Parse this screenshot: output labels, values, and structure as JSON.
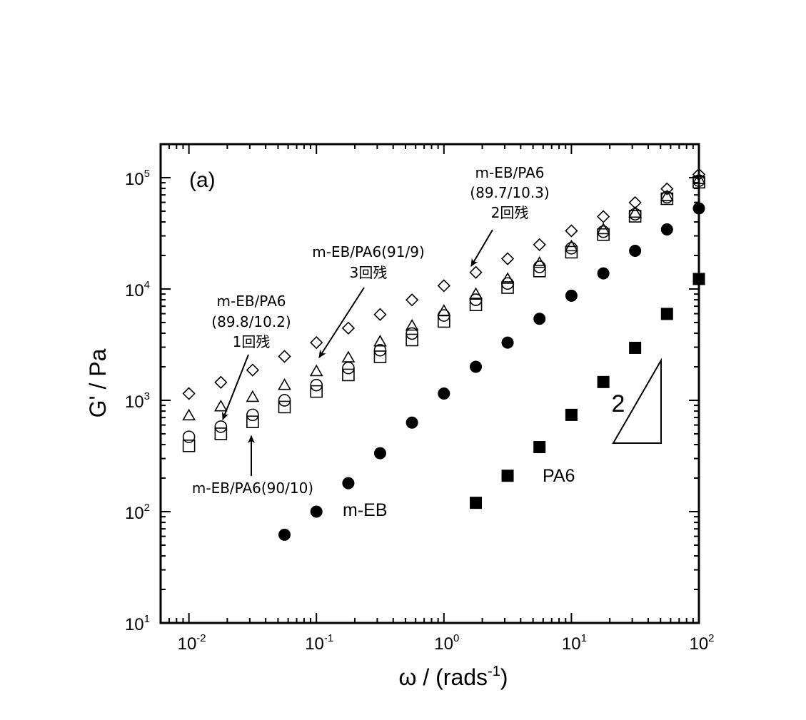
{
  "chart_data": {
    "type": "scatter",
    "panel_label": "(a)",
    "xlabel_main": "ω / (rads",
    "xlabel_sup": "-1",
    "xlabel_end": ")",
    "ylabel": "G' / Pa",
    "xscale": "log",
    "yscale": "log",
    "xlim": [
      0.006,
      100
    ],
    "ylim": [
      10,
      200000
    ],
    "grid": false,
    "x_ticks": [
      {
        "value": 0.01,
        "base": "10",
        "exp": "-2"
      },
      {
        "value": 0.1,
        "base": "10",
        "exp": "-1"
      },
      {
        "value": 1,
        "base": "10",
        "exp": "0"
      },
      {
        "value": 10,
        "base": "10",
        "exp": "1"
      },
      {
        "value": 100,
        "base": "10",
        "exp": "2"
      }
    ],
    "y_ticks": [
      {
        "value": 10,
        "base": "10",
        "exp": "1"
      },
      {
        "value": 100,
        "base": "10",
        "exp": "2"
      },
      {
        "value": 1000,
        "base": "10",
        "exp": "3"
      },
      {
        "value": 10000,
        "base": "10",
        "exp": "4"
      },
      {
        "value": 100000,
        "base": "10",
        "exp": "5"
      }
    ],
    "series": [
      {
        "marker": "diamond-open",
        "x": [
          0.01,
          0.0178,
          0.0316,
          0.0562,
          0.1,
          0.178,
          0.316,
          0.562,
          1.0,
          1.78,
          3.16,
          5.62,
          10,
          17.8,
          31.6,
          56.2,
          100
        ],
        "y": [
          1150,
          1450,
          1870,
          2480,
          3300,
          4450,
          5900,
          7980,
          10700,
          14100,
          18700,
          25000,
          33300,
          44700,
          59700,
          79300,
          107000
        ]
      },
      {
        "marker": "triangle-open",
        "x": [
          0.01,
          0.0178,
          0.0316,
          0.0562,
          0.1,
          0.178,
          0.316,
          0.562,
          1.0,
          1.78,
          3.16,
          5.62,
          10,
          17.8,
          31.6,
          56.2,
          100
        ],
        "y": [
          730,
          880,
          1070,
          1370,
          1820,
          2420,
          3370,
          4670,
          6350,
          9000,
          12300,
          17100,
          24100,
          34300,
          48300,
          68000,
          97000
        ]
      },
      {
        "marker": "circle-open",
        "x": [
          0.01,
          0.0178,
          0.0316,
          0.0562,
          0.1,
          0.178,
          0.316,
          0.562,
          1.0,
          1.78,
          3.16,
          5.62,
          10,
          17.8,
          31.6,
          56.2,
          100
        ],
        "y": [
          470,
          580,
          740,
          1000,
          1370,
          1950,
          2820,
          3980,
          5780,
          8000,
          11200,
          15800,
          23200,
          32700,
          47000,
          66800,
          94000
        ]
      },
      {
        "marker": "square-open",
        "x": [
          0.01,
          0.0178,
          0.0316,
          0.0562,
          0.1,
          0.178,
          0.316,
          0.562,
          1.0,
          1.78,
          3.16,
          5.62,
          10,
          17.8,
          31.6,
          56.2,
          100
        ],
        "y": [
          390,
          500,
          640,
          870,
          1200,
          1690,
          2460,
          3480,
          5110,
          7200,
          10300,
          14500,
          21400,
          30800,
          45000,
          64700,
          91000
        ]
      },
      {
        "marker": "circle-filled",
        "x": [
          0.0562,
          0.1,
          0.178,
          0.316,
          0.562,
          1.0,
          1.78,
          3.16,
          5.62,
          10,
          17.8,
          31.6,
          56.2,
          100
        ],
        "y": [
          62,
          100,
          180,
          335,
          630,
          1150,
          2000,
          3300,
          5400,
          8700,
          13800,
          22000,
          34300,
          53000
        ]
      },
      {
        "marker": "square-filled",
        "x": [
          1.78,
          3.16,
          5.62,
          10,
          17.8,
          31.6,
          56.2,
          100
        ],
        "y": [
          120,
          210,
          380,
          740,
          1460,
          2960,
          5970,
          12300
        ]
      }
    ],
    "annotations": [
      {
        "lines": [
          "m-EB/PA6",
          "(89.7/10.3)",
          "2回残"
        ]
      },
      {
        "lines": [
          "m-EB/PA6(91/9)",
          "3回残"
        ]
      },
      {
        "lines": [
          "m-EB/PA6",
          "(89.8/10.2)",
          "1回残"
        ]
      },
      {
        "lines": [
          "m-EB/PA6(90/10)"
        ]
      }
    ],
    "series_labels": {
      "m_eb": "m-EB",
      "pa6": "PA6"
    },
    "slope_label": "2"
  }
}
